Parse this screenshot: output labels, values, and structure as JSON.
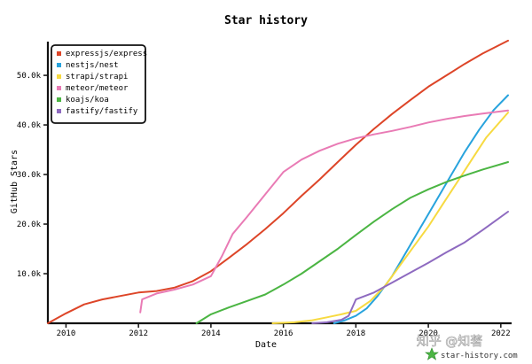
{
  "chart_data": {
    "type": "line",
    "title": "Star history",
    "xlabel": "Date",
    "ylabel": "GitHub Stars",
    "xlim": [
      2009.5,
      2022.2
    ],
    "ylim": [
      0,
      56800
    ],
    "x_ticks": [
      2010,
      2012,
      2014,
      2016,
      2018,
      2020,
      2022
    ],
    "y_ticks": [
      10000,
      20000,
      30000,
      40000,
      50000
    ],
    "y_tick_labels": [
      "10.0k",
      "20.0k",
      "30.0k",
      "40.0k",
      "50.0k"
    ],
    "grid": false,
    "legend_position": "top-left",
    "series": [
      {
        "name": "expressjs/express",
        "color": "#dd4528",
        "x": [
          2009.5,
          2010.0,
          2010.5,
          2011.0,
          2011.5,
          2012.0,
          2012.5,
          2013.0,
          2013.5,
          2014.0,
          2014.5,
          2015.0,
          2015.5,
          2016.0,
          2016.5,
          2017.0,
          2017.5,
          2018.0,
          2018.5,
          2019.0,
          2019.5,
          2020.0,
          2020.5,
          2021.0,
          2021.5,
          2022.2
        ],
        "y": [
          0,
          2000,
          3800,
          4800,
          5500,
          6200,
          6500,
          7200,
          8500,
          10500,
          13200,
          16000,
          19000,
          22200,
          25700,
          29000,
          32500,
          36000,
          39200,
          42200,
          45000,
          47700,
          50000,
          52300,
          54400,
          57000
        ]
      },
      {
        "name": "nestjs/nest",
        "color": "#28a3dd",
        "x": [
          2017.4,
          2017.7,
          2018.0,
          2018.3,
          2018.6,
          2019.0,
          2019.4,
          2019.8,
          2020.2,
          2020.6,
          2021.0,
          2021.4,
          2021.8,
          2022.2
        ],
        "y": [
          0,
          600,
          1500,
          3000,
          5500,
          9500,
          14500,
          19500,
          24500,
          29500,
          34500,
          39000,
          43000,
          46000
        ]
      },
      {
        "name": "strapi/strapi",
        "color": "#f7da41",
        "x": [
          2015.7,
          2016.3,
          2016.8,
          2017.2,
          2017.6,
          2018.0,
          2018.4,
          2018.8,
          2019.2,
          2019.6,
          2020.0,
          2020.4,
          2020.8,
          2021.2,
          2021.6,
          2022.2
        ],
        "y": [
          0,
          200,
          600,
          1200,
          1800,
          2500,
          4500,
          7500,
          11500,
          15500,
          19500,
          24000,
          28500,
          33000,
          37500,
          42500
        ]
      },
      {
        "name": "meteor/meteor",
        "color": "#e97bb5",
        "x": [
          2012.05,
          2012.1,
          2012.5,
          2013.0,
          2013.5,
          2014.0,
          2014.3,
          2014.6,
          2015.0,
          2015.5,
          2016.0,
          2016.5,
          2017.0,
          2017.5,
          2018.0,
          2018.5,
          2019.0,
          2019.5,
          2020.0,
          2020.5,
          2021.0,
          2021.5,
          2022.2
        ],
        "y": [
          2200,
          4800,
          6000,
          6800,
          7800,
          9500,
          13500,
          18000,
          21500,
          26000,
          30500,
          33000,
          34800,
          36200,
          37300,
          38100,
          38800,
          39600,
          40500,
          41200,
          41800,
          42300,
          42900
        ]
      },
      {
        "name": "koajs/koa",
        "color": "#4bb543",
        "x": [
          2013.6,
          2014.0,
          2014.5,
          2015.0,
          2015.5,
          2016.0,
          2016.5,
          2017.0,
          2017.5,
          2018.0,
          2018.5,
          2019.0,
          2019.5,
          2020.0,
          2020.5,
          2021.0,
          2021.5,
          2022.2
        ],
        "y": [
          0,
          1800,
          3200,
          4500,
          5800,
          7800,
          10000,
          12500,
          15000,
          17800,
          20500,
          23000,
          25300,
          27000,
          28500,
          29800,
          31000,
          32500
        ]
      },
      {
        "name": "fastify/fastify",
        "color": "#8e6ac0",
        "x": [
          2016.8,
          2017.2,
          2017.6,
          2017.8,
          2018.0,
          2018.5,
          2019.0,
          2019.5,
          2020.0,
          2020.5,
          2021.0,
          2021.5,
          2022.2
        ],
        "y": [
          0,
          200,
          700,
          1500,
          4800,
          6200,
          8200,
          10200,
          12200,
          14300,
          16300,
          18800,
          22500
        ]
      }
    ]
  },
  "watermark": {
    "text": "知乎 @知著",
    "brand": "star-history.com"
  }
}
